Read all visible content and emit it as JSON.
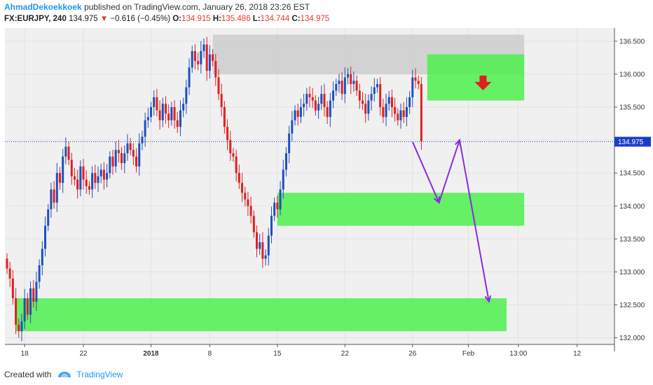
{
  "header": {
    "author": "AhmadDekoekkoek",
    "published": "published on TradingView.com, January 26, 2018 23:26 EST"
  },
  "symbol": {
    "ticker": "FX:EURJPY, 240",
    "price": "134.975",
    "change": "−0.616 (−0.45%)",
    "open_label": "O:",
    "open": "134.915",
    "high_label": "H:",
    "high": "135.486",
    "low_label": "L:",
    "low": "134.744",
    "close_label": "C:",
    "close": "134.975"
  },
  "footer": {
    "created_with": "Created with",
    "brand": "TradingView"
  },
  "colors": {
    "up": "#1e4fbf",
    "down": "#e02020",
    "zone_green": "#4cf04c",
    "zone_gray": "#c8c8c8",
    "arrow_purple": "#8a2be2",
    "price_line": "#1a3dc9",
    "price_tag": "#1a3dc9"
  },
  "chart_data": {
    "type": "candlestick",
    "symbol": "FX:EURJPY",
    "interval": "240",
    "ylim": [
      131.9,
      136.7
    ],
    "y_ticks": [
      132.0,
      132.5,
      133.0,
      133.5,
      134.0,
      134.5,
      135.0,
      135.5,
      136.0,
      136.5
    ],
    "y_tick_labels": [
      "132.000",
      "132.500",
      "133.000",
      "133.500",
      "134.000",
      "134.500",
      "135.000",
      "135.500",
      "136.000",
      "136.500"
    ],
    "last_price": 134.975,
    "last_price_label": "134.975",
    "x_ticks": [
      {
        "x": 6,
        "label": "18",
        "bold": false
      },
      {
        "x": 26,
        "label": "22",
        "bold": false
      },
      {
        "x": 49,
        "label": "2018",
        "bold": true
      },
      {
        "x": 69,
        "label": "8",
        "bold": false
      },
      {
        "x": 92,
        "label": "15",
        "bold": false
      },
      {
        "x": 115,
        "label": "22",
        "bold": false
      },
      {
        "x": 138,
        "label": "26",
        "bold": false
      },
      {
        "x": 157,
        "label": "Feb",
        "bold": false
      },
      {
        "x": 174,
        "label": "13:00",
        "bold": false
      },
      {
        "x": 194,
        "label": "12",
        "bold": false
      }
    ],
    "candles_close": [
      133.05,
      132.9,
      132.6,
      132.2,
      132.1,
      132.25,
      132.6,
      132.35,
      132.75,
      132.55,
      132.85,
      133.1,
      133.35,
      133.7,
      133.95,
      134.25,
      134.05,
      134.5,
      134.35,
      134.75,
      134.9,
      134.7,
      134.45,
      134.4,
      134.25,
      134.6,
      134.4,
      134.3,
      134.25,
      134.5,
      134.35,
      134.45,
      134.55,
      134.4,
      134.5,
      134.75,
      134.6,
      134.85,
      134.8,
      134.65,
      134.8,
      134.95,
      134.85,
      134.75,
      134.6,
      134.95,
      135.05,
      135.3,
      135.35,
      135.5,
      135.65,
      135.45,
      135.3,
      135.55,
      135.4,
      135.3,
      135.5,
      135.3,
      135.2,
      135.45,
      135.55,
      135.8,
      136.1,
      136.35,
      136.2,
      136.15,
      136.35,
      136.45,
      136.05,
      136.3,
      136.2,
      135.95,
      135.7,
      135.5,
      135.2,
      135.0,
      134.8,
      134.75,
      134.5,
      134.35,
      134.2,
      134.1,
      134.0,
      133.85,
      133.6,
      133.35,
      133.45,
      133.2,
      133.25,
      133.55,
      133.85,
      134.05,
      133.95,
      134.25,
      134.55,
      134.8,
      135.1,
      135.3,
      135.45,
      135.35,
      135.5,
      135.55,
      135.7,
      135.65,
      135.6,
      135.45,
      135.55,
      135.7,
      135.5,
      135.35,
      135.6,
      135.75,
      135.85,
      135.9,
      135.7,
      135.95,
      136.0,
      135.85,
      135.9,
      135.75,
      135.6,
      135.55,
      135.4,
      135.6,
      135.7,
      135.8,
      135.85,
      135.5,
      135.35,
      135.55,
      135.65,
      135.5,
      135.4,
      135.3,
      135.45,
      135.35,
      135.5,
      135.65,
      135.95,
      135.9,
      135.85,
      134.98
    ],
    "annotations": {
      "resistance_gray_zone": [
        136.0,
        136.6
      ],
      "sell_green_zone": [
        135.6,
        136.3
      ],
      "support_green_zone_1": [
        133.7,
        134.2
      ],
      "support_green_zone_2": [
        132.1,
        132.6
      ],
      "projection_path": [
        {
          "x": 138,
          "y": 134.975
        },
        {
          "x": 147,
          "y": 134.05
        },
        {
          "x": 154,
          "y": 135.0
        },
        {
          "x": 164,
          "y": 132.55
        }
      ],
      "sell_arrow_at": {
        "x": 162,
        "y": 135.85
      }
    }
  }
}
